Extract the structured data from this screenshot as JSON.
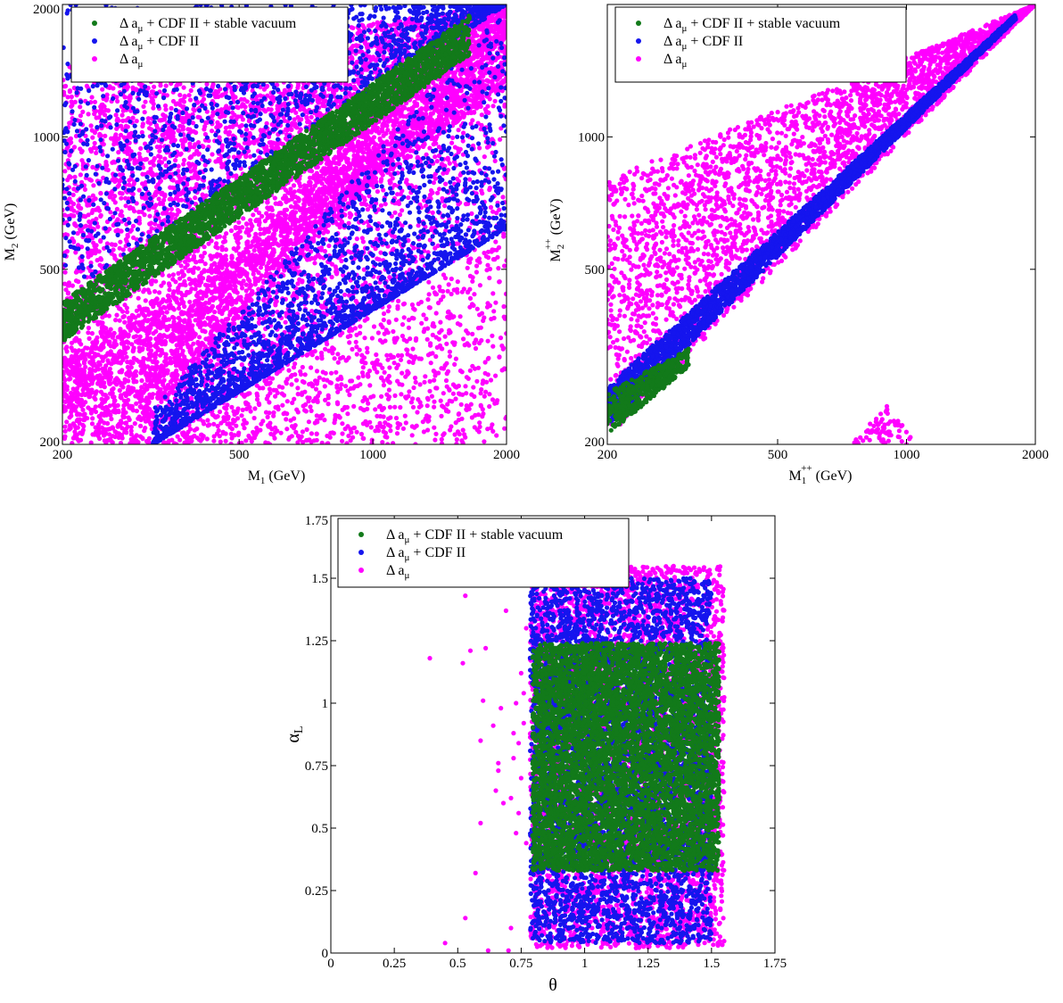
{
  "legend": {
    "entries": [
      {
        "prefix": "Δ a",
        "sub": "μ",
        "suffix": " + CDF II + stable vacuum",
        "color": "#127a1a"
      },
      {
        "prefix": "Δ a",
        "sub": "μ",
        "suffix": " + CDF II",
        "color": "#1515ee"
      },
      {
        "prefix": "Δ a",
        "sub": "μ",
        "suffix": "",
        "color": "#ff00ff"
      }
    ]
  },
  "colors": {
    "green": "#127a1a",
    "blue": "#1515ee",
    "magenta": "#ff00ff"
  },
  "chart_data": [
    {
      "type": "scatter",
      "id": "m1-m2",
      "xscale": "log",
      "yscale": "log",
      "xlim": [
        200,
        2000
      ],
      "ylim": [
        200,
        2000
      ],
      "xticks": [
        200,
        500,
        1000,
        2000
      ],
      "yticks": [
        200,
        500,
        1000,
        2000
      ],
      "xlabel": {
        "main": "M",
        "sub": "1",
        "sup": "",
        "rest": " (GeV)"
      },
      "ylabel": {
        "main": "M",
        "sub": "2",
        "sup": "",
        "rest": " (GeV)"
      },
      "legend_position": "top-left",
      "series": [
        {
          "color_key": "magenta",
          "regions": [
            {
              "kind": "band",
              "x": [
                200,
                2000
              ],
              "lo": [
                240,
                1300
              ],
              "hi": [
                1450,
                2000
              ],
              "density": 5200,
              "cluster_line": {
                "x": [
                  300,
                  2000
                ],
                "y": [
                  260,
                  2000
                ]
              }
            },
            {
              "kind": "band",
              "x": [
                200,
                2000
              ],
              "lo": [
                200,
                200
              ],
              "hi": [
                310,
                1400
              ],
              "density": 3200
            }
          ]
        },
        {
          "color_key": "blue",
          "regions": [
            {
              "kind": "band",
              "x": [
                200,
                2000
              ],
              "lo": [
                430,
                2000
              ],
              "hi": [
                2000,
                2000
              ],
              "density": 1500
            },
            {
              "kind": "band",
              "x": [
                320,
                2000
              ],
              "lo": [
                200,
                620
              ],
              "hi": [
                240,
                2000
              ],
              "density": 2100,
              "dense_edge": true
            }
          ]
        },
        {
          "color_key": "green",
          "regions": [
            {
              "kind": "line-band",
              "x": [
                200,
                1650
              ],
              "center": [
                380,
                1700
              ],
              "half_width_frac": 0.065,
              "density": 3200
            }
          ]
        }
      ]
    },
    {
      "type": "scatter",
      "id": "m1pp-m2pp",
      "xscale": "log",
      "yscale": "log",
      "xlim": [
        200,
        2000
      ],
      "ylim": [
        200,
        2000
      ],
      "xticks": [
        200,
        500,
        1000,
        2000
      ],
      "yticks": [
        200,
        500,
        1000
      ],
      "xlabel": {
        "main": "M",
        "sub": "1",
        "sup": "++",
        "rest": " (GeV)"
      },
      "ylabel": {
        "main": "M",
        "sub": "2",
        "sup": "++",
        "rest": " (GeV)"
      },
      "legend_position": "top-left",
      "series": [
        {
          "color_key": "magenta",
          "regions": [
            {
              "kind": "band",
              "x": [
                200,
                2000
              ],
              "lo": [
                205,
                2000
              ],
              "hi": [
                800,
                2000
              ],
              "density": 3400
            },
            {
              "kind": "triangle",
              "pts": [
                [
                  740,
                  200
                ],
                [
                  900,
                  245
                ],
                [
                  1060,
                  200
                ]
              ],
              "density": 70
            }
          ]
        },
        {
          "color_key": "blue",
          "regions": [
            {
              "kind": "band",
              "x": [
                200,
                1800
              ],
              "lo": [
                220,
                1850
              ],
              "hi": [
                270,
                1900
              ],
              "density": 3200
            }
          ]
        },
        {
          "color_key": "green",
          "regions": [
            {
              "kind": "band",
              "x": [
                200,
                310
              ],
              "lo": [
                210,
                300
              ],
              "hi": [
                262,
                330
              ],
              "density": 500
            }
          ]
        }
      ]
    },
    {
      "type": "scatter",
      "id": "theta-alphaL",
      "xscale": "linear",
      "yscale": "linear",
      "xlim": [
        0,
        1.75
      ],
      "ylim": [
        0,
        1.75
      ],
      "xticks": [
        0,
        0.25,
        0.5,
        0.75,
        1,
        1.25,
        1.5,
        1.75
      ],
      "yticks": [
        0,
        0.25,
        0.5,
        0.75,
        1,
        1.25,
        1.5,
        1.75
      ],
      "xtick_labels": [
        "0",
        "0.25",
        "0.5",
        "0.75",
        "1",
        "1.25",
        "1.5",
        "1.75"
      ],
      "ytick_labels": [
        "0",
        "0.25",
        "0.5",
        "0.75",
        "1",
        "1.25",
        "1.5",
        "1.75"
      ],
      "xlabel": {
        "main": "θ",
        "sub": "",
        "sup": "",
        "rest": ""
      },
      "ylabel": {
        "main": "α",
        "sub": "L",
        "sup": "",
        "rest": ""
      },
      "legend_position": "top-left",
      "series": [
        {
          "color_key": "magenta",
          "regions": [
            {
              "kind": "rect",
              "x": [
                0.785,
                1.55
              ],
              "y": [
                0.02,
                1.55
              ],
              "density": 4200
            },
            {
              "kind": "scatter-pts",
              "pts": [
                [
                  0.39,
                  1.18
                ],
                [
                  0.45,
                  0.04
                ],
                [
                  0.52,
                  1.16
                ],
                [
                  0.53,
                  1.43
                ],
                [
                  0.53,
                  0.14
                ],
                [
                  0.55,
                  1.21
                ],
                [
                  0.57,
                  0.32
                ],
                [
                  0.59,
                  0.52
                ],
                [
                  0.59,
                  0.85
                ],
                [
                  0.6,
                  1.01
                ],
                [
                  0.61,
                  1.22
                ],
                [
                  0.62,
                  0.01
                ],
                [
                  0.64,
                  0.91
                ],
                [
                  0.65,
                  0.65
                ],
                [
                  0.66,
                  0.73
                ],
                [
                  0.66,
                  0.76
                ],
                [
                  0.67,
                  0.98
                ],
                [
                  0.68,
                  0.6
                ],
                [
                  0.69,
                  1.37
                ],
                [
                  0.7,
                  0.01
                ],
                [
                  0.71,
                  0.1
                ],
                [
                  0.71,
                  0.62
                ],
                [
                  0.72,
                  0.78
                ],
                [
                  0.72,
                  0.88
                ],
                [
                  0.73,
                  0.48
                ],
                [
                  0.73,
                  1.0
                ],
                [
                  0.74,
                  0.56
                ],
                [
                  0.74,
                  0.84
                ],
                [
                  0.75,
                  1.12
                ],
                [
                  0.75,
                  0.7
                ],
                [
                  0.76,
                  0.92
                ],
                [
                  0.76,
                  1.04
                ],
                [
                  0.77,
                  1.3
                ],
                [
                  0.77,
                  0.44
                ]
              ]
            }
          ]
        },
        {
          "color_key": "blue",
          "regions": [
            {
              "kind": "rect",
              "x": [
                0.785,
                1.5
              ],
              "y": [
                0.04,
                1.5
              ],
              "density": 4200
            }
          ]
        },
        {
          "color_key": "green",
          "regions": [
            {
              "kind": "rect",
              "x": [
                0.795,
                1.53
              ],
              "y": [
                0.33,
                1.24
              ],
              "density": 6500
            }
          ]
        }
      ]
    }
  ]
}
